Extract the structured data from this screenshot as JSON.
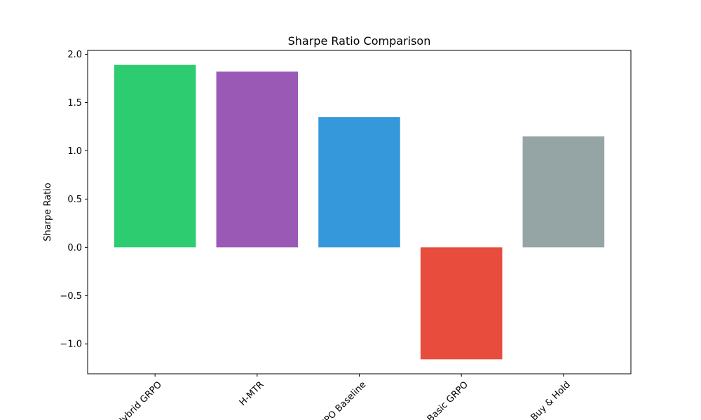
{
  "chart_data": {
    "type": "bar",
    "title": "Sharpe Ratio Comparison",
    "xlabel": "",
    "ylabel": "Sharpe Ratio",
    "categories": [
      "Hybrid GRPO",
      "H-MTR",
      "PPO Baseline",
      "Basic GRPO",
      "Buy & Hold"
    ],
    "values": [
      1.89,
      1.82,
      1.35,
      -1.16,
      1.15
    ],
    "colors": [
      "#2ecc71",
      "#9b59b6",
      "#3498db",
      "#e74c3c",
      "#95a5a6"
    ],
    "ylim": [
      -1.31,
      2.04
    ],
    "yticks": [
      -1.0,
      -0.5,
      0.0,
      0.5,
      1.0,
      1.5,
      2.0
    ],
    "ytick_labels": [
      "−1.0",
      "−0.5",
      "0.0",
      "0.5",
      "1.0",
      "1.5",
      "2.0"
    ],
    "grid": false,
    "legend": false
  }
}
